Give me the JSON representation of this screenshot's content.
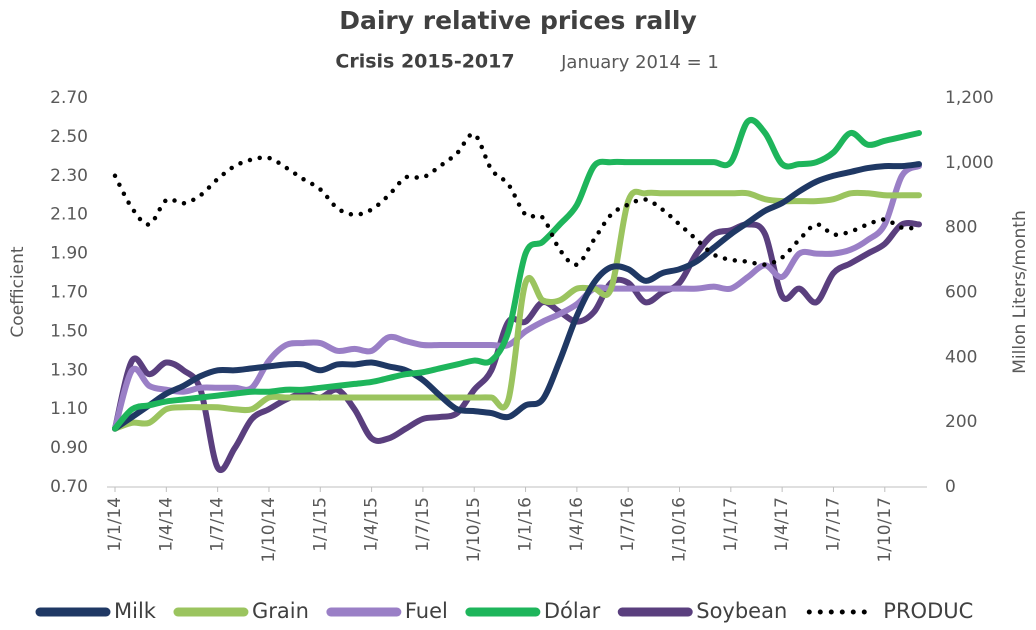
{
  "chart_data": {
    "type": "line",
    "title": "Dairy relative prices rally",
    "subtitle": "Crisis 2015-2017",
    "subtitle_note": "January 2014 = 1",
    "y_label": "Coefficient",
    "y2_label": "Millon Liters/month",
    "categories": [
      "1/1/14",
      null,
      null,
      "1/4/14",
      null,
      null,
      "1/7/14",
      null,
      null,
      "1/10/14",
      null,
      null,
      "1/1/15",
      null,
      null,
      "1/4/15",
      null,
      null,
      "1/7/15",
      null,
      null,
      "1/10/15",
      null,
      null,
      "1/1/16",
      null,
      null,
      "1/4/16",
      null,
      null,
      "1/7/16",
      null,
      null,
      "1/10/16",
      null,
      null,
      "1/1/17",
      null,
      null,
      "1/4/17",
      null,
      null,
      "1/7/17",
      null,
      null,
      "1/10/17",
      null,
      null
    ],
    "ylim": [
      0.7,
      2.7
    ],
    "yticks": [
      {
        "value": 0.7,
        "label": "0.70"
      },
      {
        "value": 0.9,
        "label": "0.90"
      },
      {
        "value": 1.1,
        "label": "1.10"
      },
      {
        "value": 1.3,
        "label": "1.30"
      },
      {
        "value": 1.5,
        "label": "1.50"
      },
      {
        "value": 1.7,
        "label": "1.70"
      },
      {
        "value": 1.9,
        "label": "1.90"
      },
      {
        "value": 2.1,
        "label": "2.10"
      },
      {
        "value": 2.3,
        "label": "2.30"
      },
      {
        "value": 2.5,
        "label": "2.50"
      },
      {
        "value": 2.7,
        "label": "2.70"
      }
    ],
    "y2lim": [
      0,
      1200
    ],
    "y2ticks": [
      0,
      200,
      400,
      600,
      800,
      {
        "value": 1000,
        "label": "1,000"
      },
      {
        "value": 1200,
        "label": "1,200"
      }
    ],
    "grid": false,
    "legend": "bottom",
    "series": [
      {
        "name": "Milk",
        "color": "#1f3864",
        "values": [
          1.0,
          1.06,
          1.12,
          1.18,
          1.22,
          1.27,
          1.3,
          1.3,
          1.31,
          1.32,
          1.33,
          1.33,
          1.3,
          1.33,
          1.33,
          1.34,
          1.32,
          1.3,
          1.25,
          1.17,
          1.1,
          1.09,
          1.08,
          1.06,
          1.12,
          1.15,
          1.35,
          1.58,
          1.75,
          1.83,
          1.82,
          1.76,
          1.8,
          1.82,
          1.86,
          1.93,
          2.0,
          2.06,
          2.12,
          2.16,
          2.22,
          2.27,
          2.3,
          2.32,
          2.34,
          2.35,
          2.35,
          2.36
        ]
      },
      {
        "name": "Grain",
        "color": "#9bc45f",
        "values": [
          1.0,
          1.03,
          1.03,
          1.1,
          1.11,
          1.11,
          1.11,
          1.1,
          1.1,
          1.16,
          1.16,
          1.16,
          1.16,
          1.16,
          1.16,
          1.16,
          1.16,
          1.16,
          1.16,
          1.16,
          1.16,
          1.16,
          1.16,
          1.15,
          1.75,
          1.66,
          1.66,
          1.72,
          1.72,
          1.72,
          2.17,
          2.21,
          2.21,
          2.21,
          2.21,
          2.21,
          2.21,
          2.21,
          2.18,
          2.17,
          2.17,
          2.17,
          2.18,
          2.21,
          2.21,
          2.2,
          2.2,
          2.2
        ]
      },
      {
        "name": "Fuel",
        "color": "#9a7fc6",
        "values": [
          1.0,
          1.3,
          1.22,
          1.2,
          1.19,
          1.21,
          1.21,
          1.21,
          1.21,
          1.35,
          1.43,
          1.44,
          1.44,
          1.4,
          1.41,
          1.4,
          1.47,
          1.45,
          1.43,
          1.43,
          1.43,
          1.43,
          1.43,
          1.43,
          1.5,
          1.55,
          1.59,
          1.64,
          1.72,
          1.72,
          1.72,
          1.72,
          1.72,
          1.72,
          1.72,
          1.73,
          1.72,
          1.78,
          1.84,
          1.78,
          1.9,
          1.9,
          1.9,
          1.92,
          1.97,
          2.05,
          2.3,
          2.35
        ]
      },
      {
        "name": "Dólar",
        "color": "#1eb55b",
        "values": [
          1.0,
          1.1,
          1.12,
          1.14,
          1.15,
          1.16,
          1.17,
          1.18,
          1.19,
          1.19,
          1.2,
          1.2,
          1.21,
          1.22,
          1.23,
          1.24,
          1.26,
          1.28,
          1.29,
          1.31,
          1.33,
          1.35,
          1.35,
          1.5,
          1.9,
          1.96,
          2.05,
          2.15,
          2.35,
          2.37,
          2.37,
          2.37,
          2.37,
          2.37,
          2.37,
          2.37,
          2.37,
          2.58,
          2.52,
          2.36,
          2.36,
          2.37,
          2.42,
          2.52,
          2.46,
          2.48,
          2.5,
          2.52
        ]
      },
      {
        "name": "Soybean",
        "color": "#5a3f7e",
        "values": [
          1.0,
          1.35,
          1.28,
          1.34,
          1.3,
          1.2,
          0.8,
          0.9,
          1.05,
          1.1,
          1.15,
          1.18,
          1.16,
          1.2,
          1.1,
          0.95,
          0.95,
          1.0,
          1.05,
          1.06,
          1.08,
          1.2,
          1.3,
          1.55,
          1.55,
          1.65,
          1.6,
          1.55,
          1.6,
          1.75,
          1.75,
          1.65,
          1.7,
          1.75,
          1.9,
          2.0,
          2.02,
          2.05,
          2.0,
          1.68,
          1.72,
          1.65,
          1.8,
          1.85,
          1.9,
          1.95,
          2.05,
          2.05
        ]
      },
      {
        "name": "PRODUC",
        "color": "#000000",
        "style": "dotted",
        "axis": "y2",
        "values": [
          960,
          860,
          810,
          885,
          875,
          900,
          950,
          990,
          1010,
          1015,
          985,
          950,
          918,
          860,
          840,
          856,
          900,
          955,
          955,
          990,
          1030,
          1088,
          980,
          933,
          840,
          831,
          732,
          686,
          763,
          840,
          871,
          887,
          856,
          810,
          763,
          717,
          701,
          695,
          686,
          708,
          763,
          810,
          779,
          788,
          810,
          825,
          800,
          800
        ]
      }
    ]
  }
}
